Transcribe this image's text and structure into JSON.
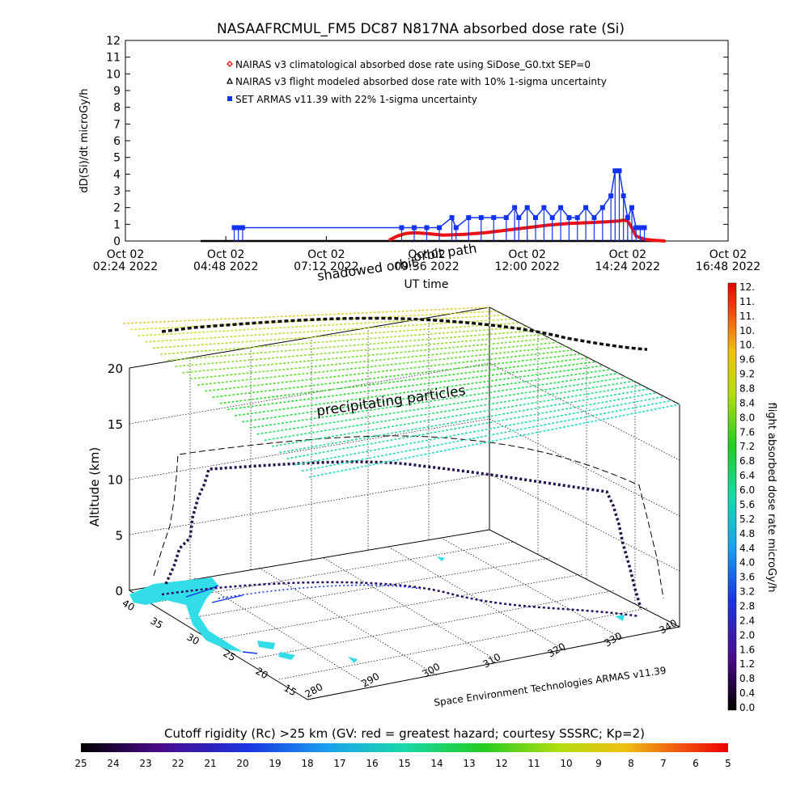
{
  "colors": {
    "red": "#ee1111",
    "blue": "#1133ee",
    "black": "#000000",
    "cyan": "#33dde8"
  },
  "chart_data": [
    {
      "type": "line",
      "title": "NASAAFRCMUL_FM5 DC87 N817NA absorbed dose rate (Si)",
      "ylabel": "dD(Si)/dt microGy/h",
      "xlabel": "UT time",
      "ylim": [
        0,
        12
      ],
      "y_ticks": [
        "0",
        "1",
        "2",
        "3",
        "4",
        "5",
        "6",
        "7",
        "8",
        "9",
        "10",
        "11",
        "12"
      ],
      "x_ticks": [
        {
          "t": 2.4,
          "line1": "Oct 02",
          "line2": "02:24 2022"
        },
        {
          "t": 4.8,
          "line1": "Oct 02",
          "line2": "04:48 2022"
        },
        {
          "t": 7.2,
          "line1": "Oct 02",
          "line2": "07:12 2022"
        },
        {
          "t": 9.6,
          "line1": "Oct 02",
          "line2": "09:36 2022"
        },
        {
          "t": 12.0,
          "line1": "Oct 02",
          "line2": "12:00 2022"
        },
        {
          "t": 14.4,
          "line1": "Oct 02",
          "line2": "14:24 2022"
        },
        {
          "t": 16.8,
          "line1": "Oct 02",
          "line2": "16:48 2022"
        }
      ],
      "legend": [
        {
          "label": "NAIRAS v3 climatological absorbed dose rate using SiDose_G0.txt SEP=0",
          "marker": "diamond",
          "color": "#ee1111"
        },
        {
          "label": "NAIRAS v3 flight modeled absorbed dose rate with 10% 1-sigma uncertainty",
          "marker": "triangle",
          "color": "#000000"
        },
        {
          "label": "SET ARMAS v11.39 with 22% 1-sigma uncertainty",
          "marker": "square",
          "color": "#1133ee"
        }
      ],
      "series": [
        {
          "name": "NAIRAS v3 flight modeled absorbed dose rate with 10% 1-sigma uncertainty",
          "color": "#000000",
          "x": [
            4.2,
            9.0,
            9.6,
            10.5,
            12.0,
            13.5,
            14.3,
            14.6,
            15.0,
            15.3
          ],
          "y": [
            0,
            0,
            0,
            0,
            0,
            0,
            0,
            0,
            0,
            0
          ]
        },
        {
          "name": "NAIRAS v3 climatological absorbed dose rate using SiDose_G0.txt SEP=0",
          "color": "#ee1111",
          "x": [
            8.7,
            8.9,
            9.1,
            9.3,
            9.6,
            10.0,
            10.5,
            11.0,
            11.5,
            12.0,
            12.5,
            13.0,
            13.5,
            13.9,
            14.2,
            14.3,
            14.4,
            14.5,
            14.6,
            14.8,
            15.0,
            15.3
          ],
          "y": [
            0.05,
            0.3,
            0.45,
            0.5,
            0.45,
            0.35,
            0.4,
            0.5,
            0.65,
            0.8,
            0.95,
            1.05,
            1.1,
            1.15,
            1.2,
            1.25,
            1.2,
            0.8,
            0.3,
            0.1,
            0.05,
            0.0
          ]
        },
        {
          "name": "SET ARMAS v11.39 with 22% 1-sigma uncertainty",
          "color": "#1133ee",
          "x": [
            5.0,
            5.1,
            5.2,
            9.0,
            9.3,
            9.6,
            9.9,
            10.2,
            10.3,
            10.6,
            10.9,
            11.2,
            11.5,
            11.7,
            11.8,
            12.0,
            12.2,
            12.4,
            12.6,
            12.8,
            13.0,
            13.2,
            13.4,
            13.6,
            13.8,
            14.0,
            14.1,
            14.2,
            14.3,
            14.4,
            14.5,
            14.6,
            14.7,
            14.8
          ],
          "y": [
            0.8,
            0.8,
            0.8,
            0.8,
            0.8,
            0.8,
            0.8,
            1.4,
            0.8,
            1.4,
            1.4,
            1.4,
            1.4,
            2.0,
            1.4,
            2.0,
            1.4,
            2.0,
            1.4,
            2.0,
            1.4,
            1.4,
            2.0,
            1.4,
            2.0,
            2.7,
            4.2,
            4.2,
            2.7,
            1.4,
            2.0,
            0.8,
            0.8,
            0.8
          ]
        }
      ]
    },
    {
      "type": "3d-path",
      "annotations": [
        "orbit path",
        "shadowed orbit",
        "precipitating particles"
      ],
      "zlabel": "Altitude (km)",
      "z_ticks": [
        "0",
        "5",
        "10",
        "15",
        "20"
      ],
      "lat_ticks": [
        "40",
        "35",
        "30",
        "25",
        "20",
        "15"
      ],
      "lon_ticks": [
        "280",
        "290",
        "300",
        "310",
        "320",
        "330",
        "340"
      ],
      "credit": "Space Environment Technologies ARMAS v11.39"
    },
    {
      "type": "colorbar",
      "label": "flight absorbed dose rate microGy/h",
      "ticks": [
        "12.",
        "11.",
        "11.",
        "10.",
        "10.",
        "9.6",
        "9.2",
        "8.8",
        "8.4",
        "8.0",
        "7.6",
        "7.2",
        "6.8",
        "6.4",
        "6.0",
        "5.6",
        "5.2",
        "4.8",
        "4.4",
        "4.0",
        "3.6",
        "3.2",
        "2.8",
        "2.4",
        "2.0",
        "1.6",
        "1.2",
        "0.8",
        "0.4",
        "0.0"
      ]
    },
    {
      "type": "colorbar",
      "title": "Cutoff rigidity (Rc) >25 km (GV: red = greatest hazard; courtesy SSSRC; Kp=2)",
      "ticks": [
        "25",
        "24",
        "23",
        "22",
        "21",
        "20",
        "19",
        "18",
        "17",
        "16",
        "15",
        "14",
        "13",
        "12",
        "11",
        "10",
        "9",
        "8",
        "7",
        "6",
        "5"
      ]
    }
  ]
}
